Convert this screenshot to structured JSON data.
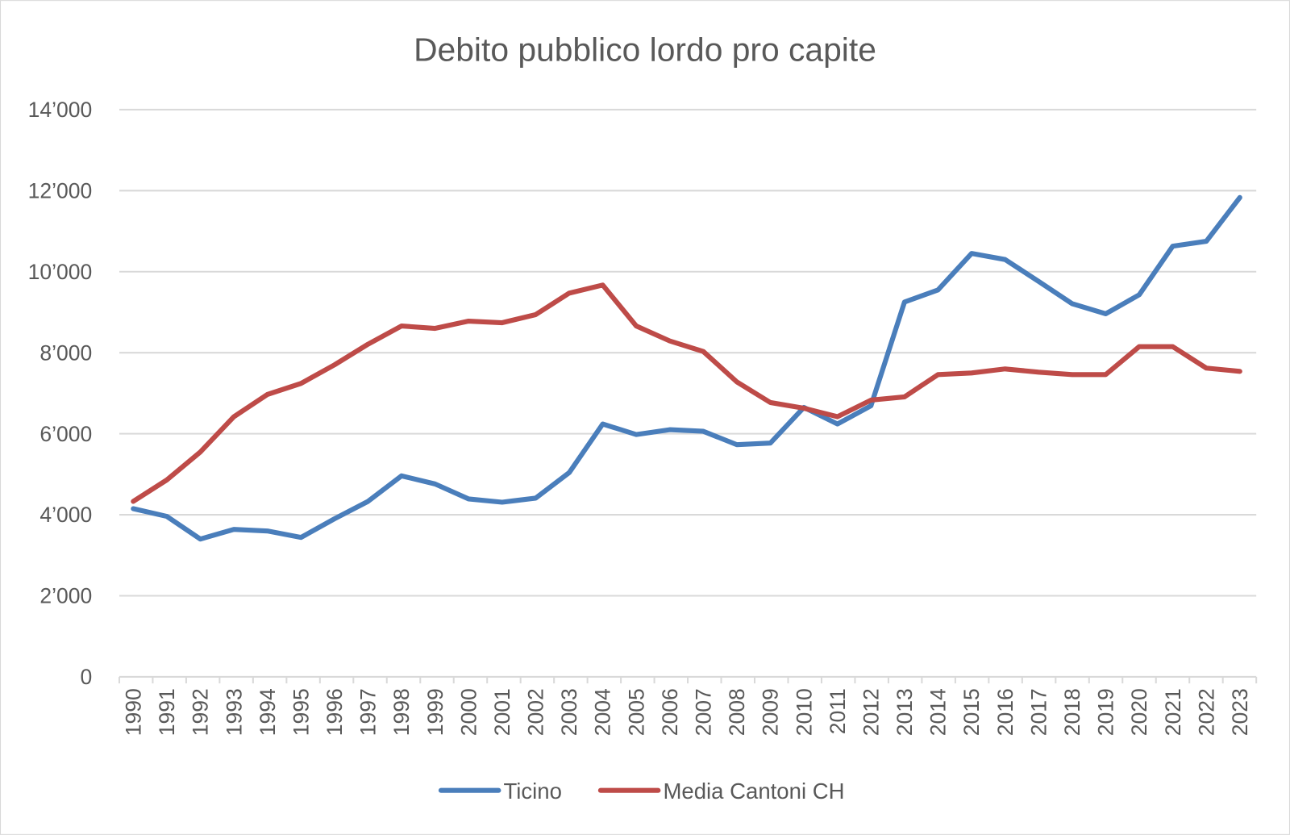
{
  "chart_data": {
    "type": "line",
    "title": "Debito pubblico lordo pro capite",
    "xlabel": "",
    "ylabel": "",
    "ylim": [
      0,
      14000
    ],
    "yticks": [
      0,
      2000,
      4000,
      6000,
      8000,
      10000,
      12000,
      14000
    ],
    "ytick_labels": [
      "0",
      "2’000",
      "4’000",
      "6’000",
      "8’000",
      "10’000",
      "12’000",
      "14’000"
    ],
    "grid": true,
    "legend_position": "bottom",
    "categories": [
      "1990",
      "1991",
      "1992",
      "1993",
      "1994",
      "1995",
      "1996",
      "1997",
      "1998",
      "1999",
      "2000",
      "2001",
      "2002",
      "2003",
      "2004",
      "2005",
      "2006",
      "2007",
      "2008",
      "2009",
      "2010",
      "2011",
      "2012",
      "2013",
      "2014",
      "2015",
      "2016",
      "2017",
      "2018",
      "2019",
      "2020",
      "2021",
      "2022",
      "2023"
    ],
    "series": [
      {
        "name": "Ticino",
        "color": "#4a7ebb",
        "values": [
          4150,
          3960,
          3400,
          3640,
          3600,
          3440,
          3900,
          4330,
          4960,
          4760,
          4390,
          4310,
          4410,
          5040,
          6240,
          5980,
          6100,
          6060,
          5730,
          5770,
          6650,
          6240,
          6690,
          9250,
          9550,
          10450,
          10300,
          9760,
          9210,
          8960,
          9430,
          10630,
          10750,
          11830
        ]
      },
      {
        "name": "Media Cantoni CH",
        "color": "#be4b48",
        "values": [
          4330,
          4860,
          5550,
          6420,
          6970,
          7240,
          7700,
          8210,
          8660,
          8600,
          8780,
          8740,
          8940,
          9470,
          9670,
          8660,
          8290,
          8030,
          7280,
          6770,
          6630,
          6420,
          6830,
          6910,
          7460,
          7500,
          7600,
          7520,
          7460,
          7460,
          8150,
          8150,
          7620,
          7540
        ]
      }
    ]
  }
}
